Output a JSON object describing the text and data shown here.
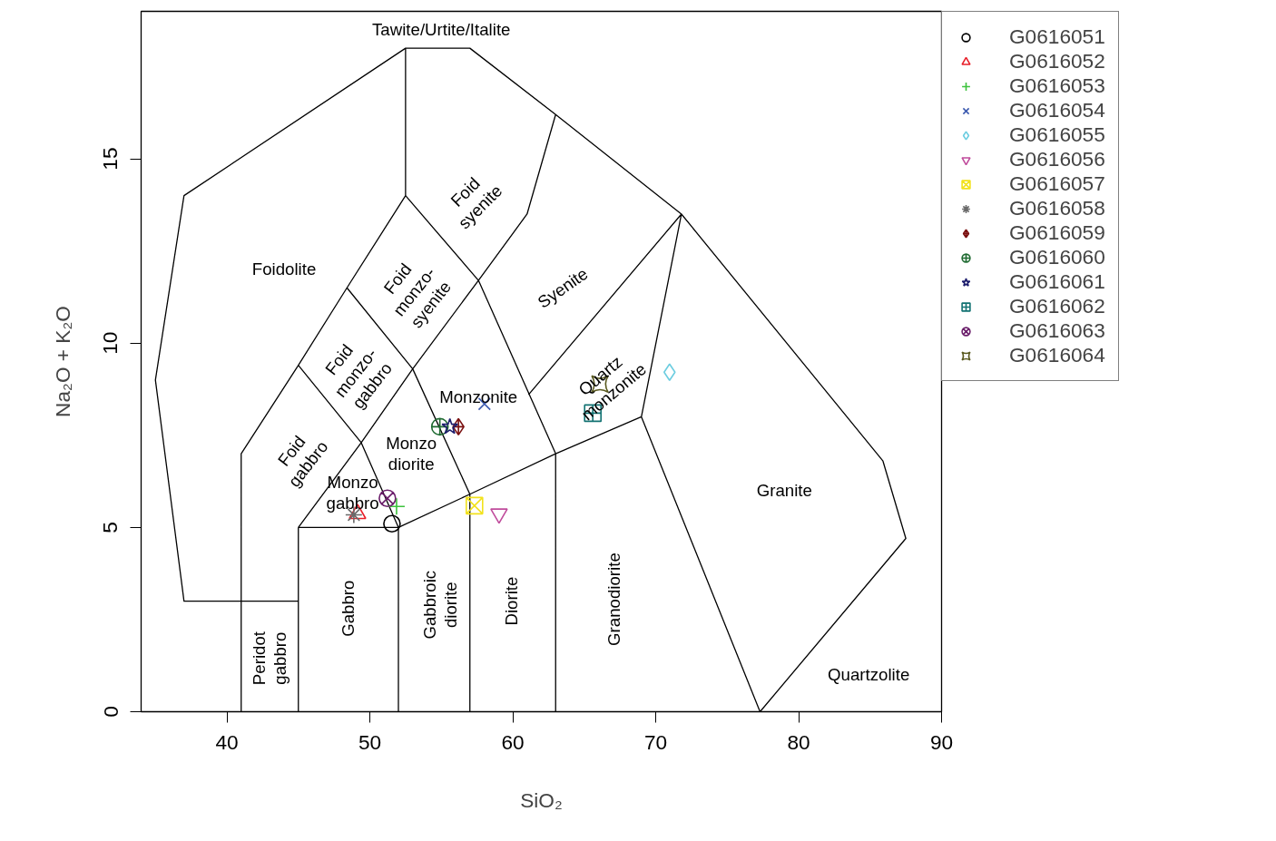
{
  "chart_data": {
    "type": "scatter",
    "xlabel": "SiO₂",
    "ylabel": "Na₂O + K₂O",
    "xlim": [
      34,
      90
    ],
    "ylim": [
      0,
      19
    ],
    "xticks": [
      40,
      50,
      60,
      70,
      80,
      90
    ],
    "yticks": [
      0,
      5,
      10,
      15
    ],
    "grid": false,
    "legend": "top right",
    "series": [
      {
        "name": "G0616051",
        "color": "#000000",
        "x": [
          51.55
        ],
        "values": [
          5.1
        ]
      },
      {
        "name": "G0616052",
        "color": "#e8202a",
        "x": [
          49.14
        ],
        "values": [
          5.37
        ]
      },
      {
        "name": "G0616053",
        "color": "#3cc23c",
        "x": [
          51.87
        ],
        "values": [
          5.57
        ]
      },
      {
        "name": "G0616054",
        "color": "#3d5bb0",
        "x": [
          58.02
        ],
        "values": [
          8.35
        ]
      },
      {
        "name": "G0616055",
        "color": "#6ccde0",
        "x": [
          70.97
        ],
        "values": [
          9.21
        ]
      },
      {
        "name": "G0616056",
        "color": "#c04c9c",
        "x": [
          59.04
        ],
        "values": [
          5.37
        ]
      },
      {
        "name": "G0616057",
        "color": "#f2e21c",
        "x": [
          57.32
        ],
        "values": [
          5.59
        ]
      },
      {
        "name": "G0616058",
        "color": "#6a6a6a",
        "x": [
          48.88
        ],
        "values": [
          5.34
        ]
      },
      {
        "name": "G0616059",
        "color": "#7a1010",
        "x": [
          56.2
        ],
        "values": [
          7.73
        ]
      },
      {
        "name": "G0616060",
        "color": "#1e6a30",
        "x": [
          54.9
        ],
        "values": [
          7.73
        ]
      },
      {
        "name": "G0616061",
        "color": "#1c1c6c",
        "x": [
          55.6
        ],
        "values": [
          7.73
        ]
      },
      {
        "name": "G0616062",
        "color": "#127272",
        "x": [
          65.6
        ],
        "values": [
          8.1
        ]
      },
      {
        "name": "G0616063",
        "color": "#6a1e6a",
        "x": [
          51.23
        ],
        "values": [
          5.79
        ]
      },
      {
        "name": "G0616064",
        "color": "#5a5a20",
        "x": [
          66.1
        ],
        "values": [
          8.89
        ]
      },
      {
        "type": "line",
        "color": "#000000",
        "x": [
          41,
          41,
          37,
          35,
          37,
          52.5,
          57,
          63,
          71.8,
          85.9,
          87.5,
          77.3,
          null,
          41,
          45,
          null,
          45,
          45,
          52,
          52,
          null,
          57,
          57,
          null,
          63,
          63,
          null,
          52,
          57,
          63,
          69,
          77.3,
          null,
          69,
          71.8,
          null,
          41,
          41,
          45,
          48.4,
          52.5,
          52.5,
          null,
          45,
          49.4,
          53,
          57.6,
          61,
          63,
          null,
          52.5,
          57.6,
          63,
          null,
          45,
          49.4,
          52,
          null,
          48.4,
          53,
          57,
          null,
          61.1,
          71.8
        ],
        "values": [
          0,
          3,
          3,
          9,
          14,
          18,
          18,
          16.2,
          13.5,
          6.8,
          4.7,
          0,
          null,
          3,
          3,
          null,
          0,
          5,
          5,
          0,
          null,
          0,
          5.9,
          null,
          0,
          7,
          null,
          5,
          5.9,
          7,
          8,
          0,
          null,
          8,
          13.5,
          null,
          3,
          7,
          9.4,
          11.5,
          14,
          18,
          null,
          5,
          7.3,
          9.3,
          11.7,
          13.5,
          16.2,
          null,
          14,
          11.7,
          7,
          null,
          9.4,
          7.3,
          5,
          null,
          11.5,
          9.3,
          5.9,
          null,
          8.6,
          13.5
        ]
      }
    ],
    "annotations": [
      "Tawite/Urtite/Italite",
      "Foidolite",
      "Foid\nsyenite",
      "Foid\nmonzo-\nsyenite",
      "Foid\nmonzo-\ngabbro",
      "Foid\ngabbro",
      "Syenite",
      "Quartz\nmonzonite",
      "Monzonite",
      "Monzo\ndiorite",
      "Monzo\ngabbro",
      "Granite",
      "Peridot\ngabbro",
      "Gabbro",
      "Gabbroic\ndiorite",
      "Diorite",
      "Granodiorite",
      "Quartzolite"
    ]
  }
}
